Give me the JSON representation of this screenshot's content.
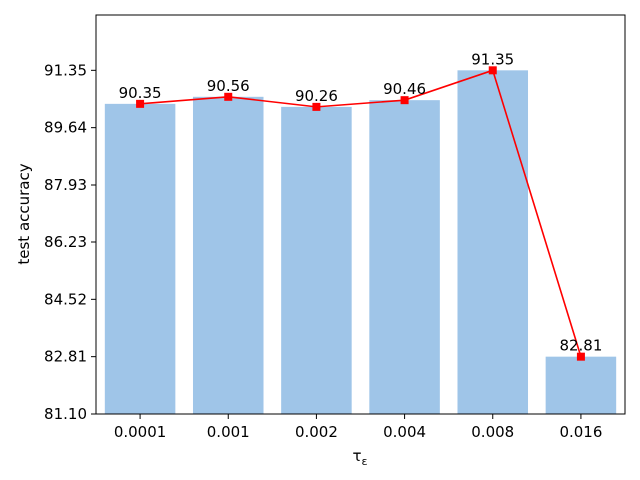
{
  "chart_data": {
    "type": "bar",
    "categories": [
      "0.0001",
      "0.001",
      "0.002",
      "0.004",
      "0.008",
      "0.016"
    ],
    "values": [
      90.35,
      90.56,
      90.26,
      90.46,
      91.35,
      82.81
    ],
    "data_labels": [
      "90.35",
      "90.56",
      "90.26",
      "90.46",
      "91.35",
      "82.81"
    ],
    "line_values": [
      90.35,
      90.56,
      90.26,
      90.46,
      91.35,
      82.81
    ],
    "xlabel_main": "τ",
    "xlabel_sub": "ε",
    "ylabel": "test accuracy",
    "ylim": [
      81.1,
      93.0
    ],
    "yticks": [
      81.1,
      82.81,
      84.52,
      86.23,
      87.93,
      89.64,
      91.35
    ],
    "ytick_labels": [
      "81.10",
      "82.81",
      "84.52",
      "86.23",
      "87.93",
      "89.64",
      "91.35"
    ],
    "grid": false,
    "colors": {
      "bar": "#9fc5e8",
      "line": "#ff0000",
      "marker": "#ff0000",
      "axis": "#000000"
    }
  }
}
